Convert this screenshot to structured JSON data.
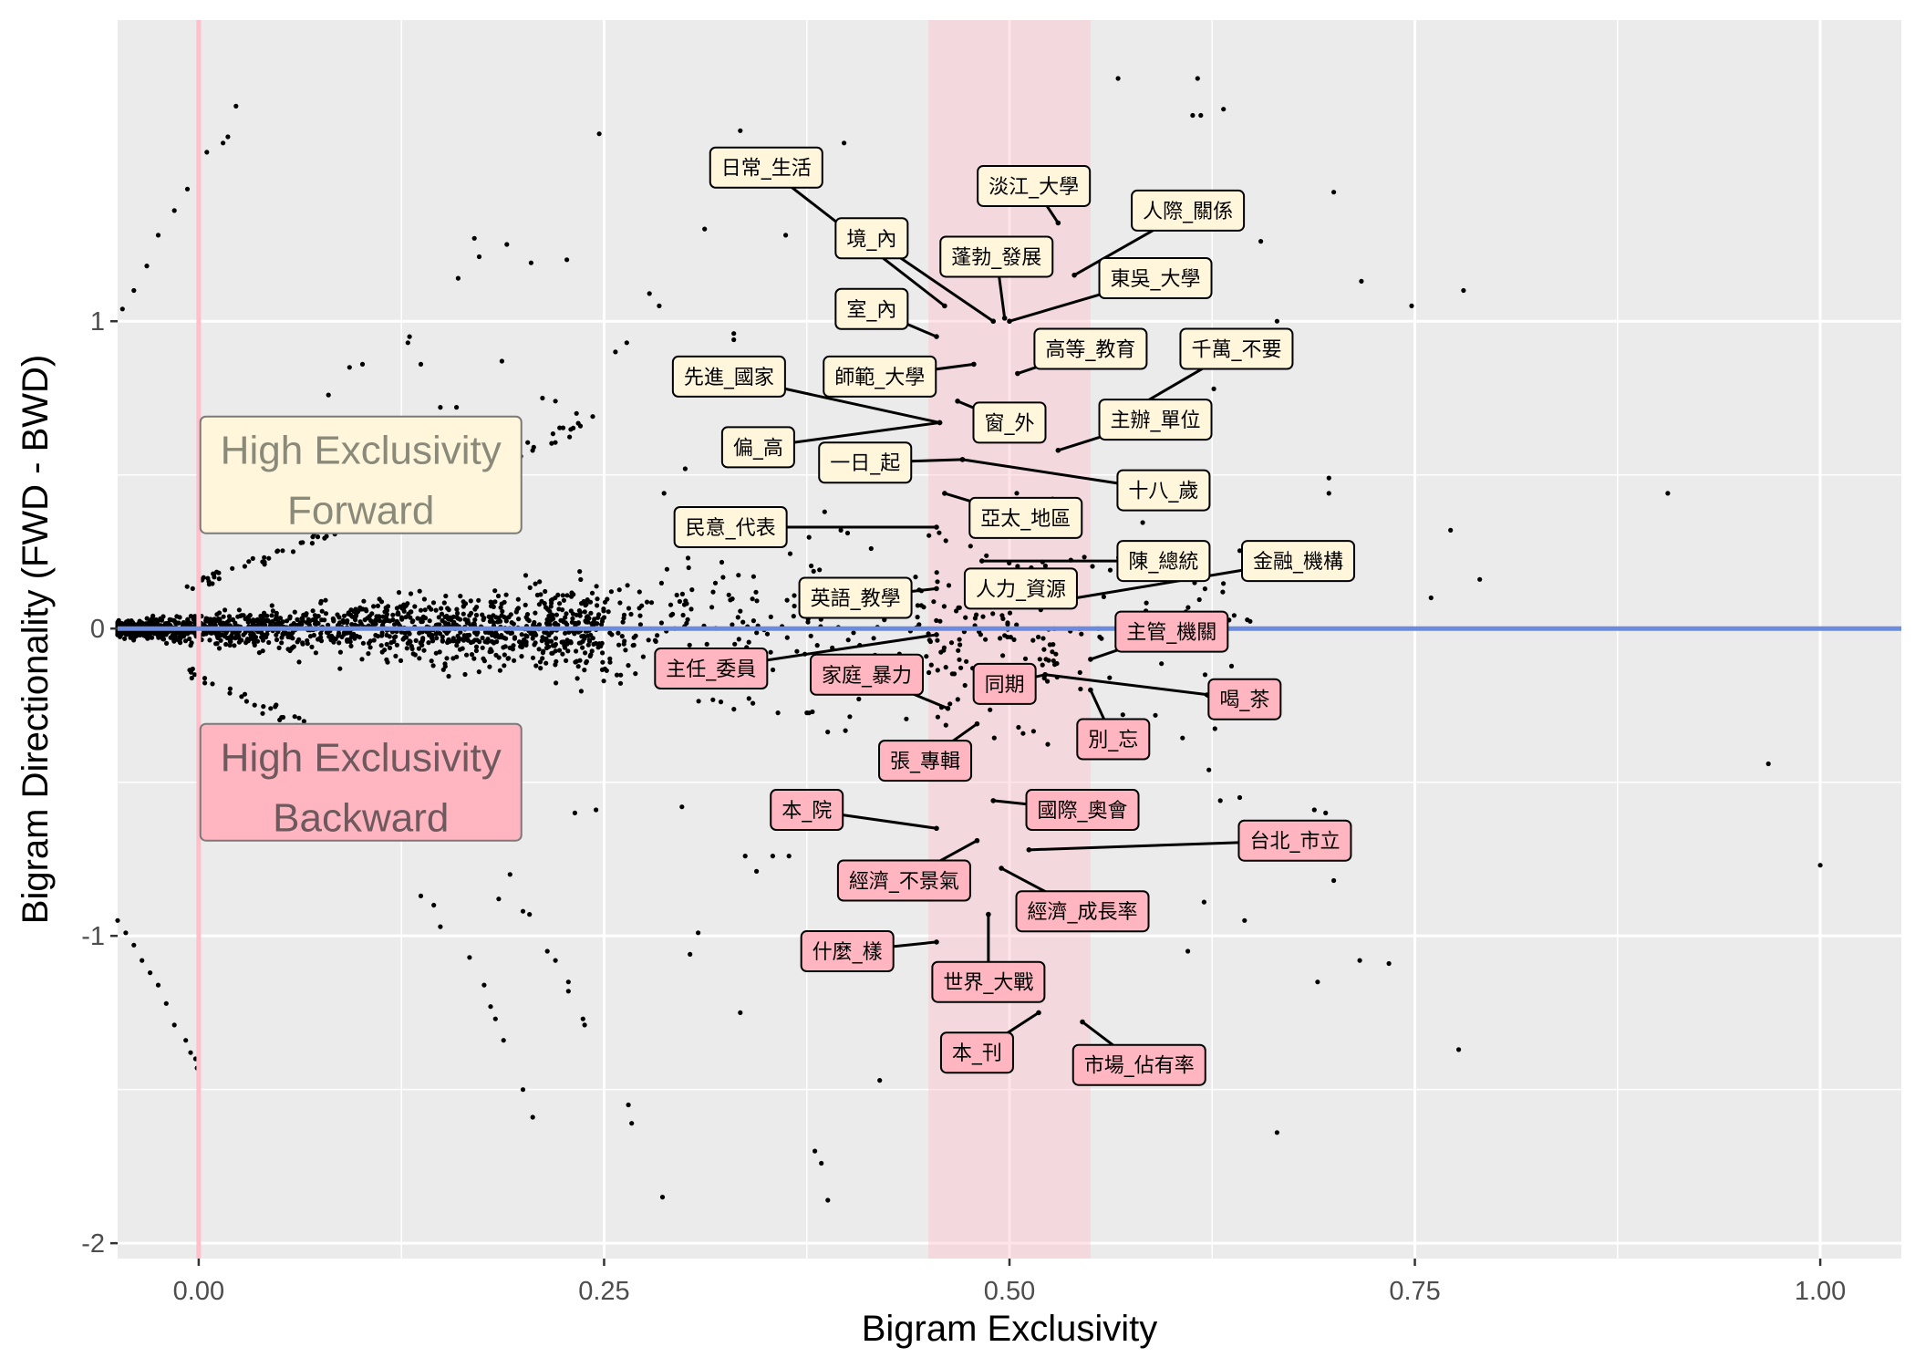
{
  "chart_data": {
    "type": "scatter",
    "xlabel": "Bigram Exclusivity",
    "ylabel": "Bigram Directionality (FWD - BWD)",
    "xlim": [
      -0.05,
      1.05
    ],
    "ylim": [
      -2.05,
      1.98
    ],
    "x_ticks": [
      0,
      0.25,
      0.5,
      0.75,
      1
    ],
    "x_tick_labels": [
      "0.00",
      "0.25",
      "0.50",
      "0.75",
      "1.00"
    ],
    "y_ticks": [
      -2,
      -1,
      0,
      1
    ],
    "y_tick_labels": [
      "-2",
      "-1",
      "0",
      "1"
    ],
    "grid": true,
    "colors": {
      "panel": "#ebebeb",
      "grid": "#ffffff",
      "points": "#000000",
      "hline": "#6b8be0",
      "vline": "#ffc0cb",
      "band": "#ffc0cb",
      "forward_fill": "#fff6dc",
      "backward_fill": "#ffb6c1"
    },
    "reference_lines": {
      "horizontal_y": 0,
      "vertical_x": 0
    },
    "highlight_band": {
      "xmin": 0.45,
      "xmax": 0.55
    },
    "region_labels": [
      {
        "line1": "High Exclusivity",
        "line2": "Forward",
        "type": "forward",
        "x": 0.1,
        "y": 0.5
      },
      {
        "line1": "High Exclusivity",
        "line2": "Backward",
        "type": "backward",
        "x": 0.1,
        "y": -0.5
      }
    ],
    "labeled_points": [
      {
        "text": "日常_生活",
        "type": "forward",
        "px": 0.46,
        "py": 1.05,
        "lx": 0.35,
        "ly": 1.5
      },
      {
        "text": "淡江_大學",
        "type": "forward",
        "px": 0.53,
        "py": 1.32,
        "lx": 0.515,
        "ly": 1.44
      },
      {
        "text": "人際_關係",
        "type": "forward",
        "px": 0.54,
        "py": 1.15,
        "lx": 0.61,
        "ly": 1.36
      },
      {
        "text": "境_內",
        "type": "forward",
        "px": 0.49,
        "py": 1.0,
        "lx": 0.415,
        "ly": 1.27
      },
      {
        "text": "蓬勃_發展",
        "type": "forward",
        "px": 0.497,
        "py": 1.01,
        "lx": 0.492,
        "ly": 1.21
      },
      {
        "text": "東吳_大學",
        "type": "forward",
        "px": 0.5,
        "py": 1.0,
        "lx": 0.59,
        "ly": 1.14
      },
      {
        "text": "室_內",
        "type": "forward",
        "px": 0.455,
        "py": 0.95,
        "lx": 0.415,
        "ly": 1.04
      },
      {
        "text": "高等_教育",
        "type": "forward",
        "px": 0.505,
        "py": 0.83,
        "lx": 0.55,
        "ly": 0.91
      },
      {
        "text": "千萬_不要",
        "type": "forward",
        "px": 0.565,
        "py": 0.68,
        "lx": 0.64,
        "ly": 0.91
      },
      {
        "text": "先進_國家",
        "type": "forward",
        "px": 0.457,
        "py": 0.67,
        "lx": 0.327,
        "ly": 0.82
      },
      {
        "text": "師範_大學",
        "type": "forward",
        "px": 0.478,
        "py": 0.86,
        "lx": 0.42,
        "ly": 0.82
      },
      {
        "text": "窗_外",
        "type": "forward",
        "px": 0.468,
        "py": 0.74,
        "lx": 0.5,
        "ly": 0.67
      },
      {
        "text": "主辦_單位",
        "type": "forward",
        "px": 0.53,
        "py": 0.58,
        "lx": 0.59,
        "ly": 0.68
      },
      {
        "text": "偏_高",
        "type": "forward",
        "px": 0.457,
        "py": 0.67,
        "lx": 0.345,
        "ly": 0.59
      },
      {
        "text": "一日_起",
        "type": "forward",
        "px": 0.471,
        "py": 0.55,
        "lx": 0.411,
        "ly": 0.54
      },
      {
        "text": "十八_歲",
        "type": "forward",
        "px": 0.471,
        "py": 0.55,
        "lx": 0.595,
        "ly": 0.45
      },
      {
        "text": "亞太_地區",
        "type": "forward",
        "px": 0.46,
        "py": 0.44,
        "lx": 0.51,
        "ly": 0.36
      },
      {
        "text": "民意_代表",
        "type": "forward",
        "px": 0.455,
        "py": 0.33,
        "lx": 0.328,
        "ly": 0.33
      },
      {
        "text": "陳_總統",
        "type": "forward",
        "px": 0.483,
        "py": 0.22,
        "lx": 0.595,
        "ly": 0.22
      },
      {
        "text": "金融_機構",
        "type": "forward",
        "px": 0.53,
        "py": 0.09,
        "lx": 0.678,
        "ly": 0.22
      },
      {
        "text": "人力_資源",
        "type": "forward",
        "px": 0.49,
        "py": 0.12,
        "lx": 0.507,
        "ly": 0.13
      },
      {
        "text": "英語_教學",
        "type": "forward",
        "px": 0.455,
        "py": 0.13,
        "lx": 0.405,
        "ly": 0.1
      },
      {
        "text": "主管_機關",
        "type": "backward",
        "px": 0.55,
        "py": -0.1,
        "lx": 0.6,
        "ly": -0.01
      },
      {
        "text": "主任_委員",
        "type": "backward",
        "px": 0.455,
        "py": -0.02,
        "lx": 0.316,
        "ly": -0.13
      },
      {
        "text": "家庭_暴力",
        "type": "backward",
        "px": 0.462,
        "py": -0.26,
        "lx": 0.412,
        "ly": -0.15
      },
      {
        "text": "同期",
        "type": "backward",
        "px": 0.522,
        "py": -0.15,
        "lx": 0.497,
        "ly": -0.18
      },
      {
        "text": "喝_茶",
        "type": "backward",
        "px": 0.522,
        "py": -0.15,
        "lx": 0.645,
        "ly": -0.23
      },
      {
        "text": "別_忘",
        "type": "backward",
        "px": 0.55,
        "py": -0.2,
        "lx": 0.564,
        "ly": -0.36
      },
      {
        "text": "張_專輯",
        "type": "backward",
        "px": 0.48,
        "py": -0.31,
        "lx": 0.448,
        "ly": -0.43
      },
      {
        "text": "本_院",
        "type": "backward",
        "px": 0.455,
        "py": -0.65,
        "lx": 0.375,
        "ly": -0.59
      },
      {
        "text": "國際_奧會",
        "type": "backward",
        "px": 0.49,
        "py": -0.56,
        "lx": 0.545,
        "ly": -0.59
      },
      {
        "text": "台北_市立",
        "type": "backward",
        "px": 0.512,
        "py": -0.72,
        "lx": 0.676,
        "ly": -0.69
      },
      {
        "text": "經濟_不景氣",
        "type": "backward",
        "px": 0.48,
        "py": -0.69,
        "lx": 0.435,
        "ly": -0.82
      },
      {
        "text": "經濟_成長率",
        "type": "backward",
        "px": 0.495,
        "py": -0.78,
        "lx": 0.545,
        "ly": -0.92
      },
      {
        "text": "什麼_樣",
        "type": "backward",
        "px": 0.455,
        "py": -1.02,
        "lx": 0.4,
        "ly": -1.05
      },
      {
        "text": "世界_大戰",
        "type": "backward",
        "px": 0.487,
        "py": -0.93,
        "lx": 0.487,
        "ly": -1.15
      },
      {
        "text": "本_刊",
        "type": "backward",
        "px": 0.518,
        "py": -1.25,
        "lx": 0.48,
        "ly": -1.38
      },
      {
        "text": "市場_佔有率",
        "type": "backward",
        "px": 0.545,
        "py": -1.28,
        "lx": 0.58,
        "ly": -1.42
      }
    ],
    "scattered_points": [
      [
        0.015,
        1.58
      ],
      [
        0.018,
        1.6
      ],
      [
        0.005,
        1.55
      ],
      [
        0.023,
        1.7
      ],
      [
        -0.007,
        1.43
      ],
      [
        -0.015,
        1.36
      ],
      [
        -0.025,
        1.28
      ],
      [
        -0.032,
        1.18
      ],
      [
        -0.04,
        1.1
      ],
      [
        -0.047,
        1.04
      ],
      [
        0.247,
        1.61
      ],
      [
        0.334,
        1.62
      ],
      [
        0.398,
        1.58
      ],
      [
        0.567,
        1.79
      ],
      [
        0.616,
        1.79
      ],
      [
        0.613,
        1.67
      ],
      [
        0.618,
        1.67
      ],
      [
        0.632,
        1.69
      ],
      [
        0.7,
        1.42
      ],
      [
        0.717,
        1.13
      ],
      [
        0.748,
        1.05
      ],
      [
        0.78,
        1.1
      ],
      [
        0.655,
        1.26
      ],
      [
        0.665,
        1.0
      ],
      [
        0.626,
        0.78
      ],
      [
        0.312,
        1.3
      ],
      [
        0.362,
        1.28
      ],
      [
        0.19,
        1.25
      ],
      [
        0.227,
        1.2
      ],
      [
        0.173,
        1.21
      ],
      [
        0.16,
        1.14
      ],
      [
        0.17,
        1.27
      ],
      [
        0.205,
        1.19
      ],
      [
        0.278,
        1.09
      ],
      [
        0.284,
        1.05
      ],
      [
        0.33,
        0.96
      ],
      [
        0.33,
        0.94
      ],
      [
        0.264,
        0.93
      ],
      [
        0.257,
        0.9
      ],
      [
        0.129,
        0.93
      ],
      [
        0.13,
        0.95
      ],
      [
        0.093,
        0.85
      ],
      [
        0.101,
        0.86
      ],
      [
        0.137,
        0.86
      ],
      [
        0.187,
        0.87
      ],
      [
        0.149,
        0.72
      ],
      [
        0.159,
        0.72
      ],
      [
        0.08,
        0.76
      ],
      [
        0.212,
        0.75
      ],
      [
        0.22,
        0.74
      ],
      [
        0.233,
        0.7
      ],
      [
        0.243,
        0.69
      ],
      [
        0.3,
        0.52
      ],
      [
        0.287,
        0.44
      ],
      [
        0.386,
        0.38
      ],
      [
        0.396,
        0.32
      ],
      [
        0.415,
        0.58
      ],
      [
        0.697,
        0.49
      ],
      [
        0.697,
        0.44
      ],
      [
        0.772,
        0.32
      ],
      [
        0.76,
        0.1
      ],
      [
        0.79,
        0.16
      ],
      [
        0.906,
        0.44
      ],
      [
        0.968,
        -0.44
      ],
      [
        1.0,
        -0.77
      ],
      [
        0.777,
        -1.37
      ],
      [
        0.734,
        -1.09
      ],
      [
        0.716,
        -1.08
      ],
      [
        0.69,
        -1.15
      ],
      [
        0.7,
        -0.82
      ],
      [
        0.695,
        -0.6
      ],
      [
        0.688,
        -0.59
      ],
      [
        0.645,
        -0.95
      ],
      [
        0.62,
        -0.89
      ],
      [
        0.61,
        -1.05
      ],
      [
        0.623,
        -0.46
      ],
      [
        0.63,
        -0.56
      ],
      [
        0.642,
        -0.55
      ],
      [
        0.665,
        -1.64
      ],
      [
        0.42,
        -1.47
      ],
      [
        0.38,
        -1.7
      ],
      [
        0.384,
        -1.74
      ],
      [
        0.388,
        -1.86
      ],
      [
        0.286,
        -1.85
      ],
      [
        0.265,
        -1.55
      ],
      [
        0.267,
        -1.61
      ],
      [
        0.2,
        -1.5
      ],
      [
        0.206,
        -1.59
      ],
      [
        0.334,
        -1.25
      ],
      [
        0.303,
        -1.06
      ],
      [
        0.308,
        -0.99
      ],
      [
        0.337,
        -0.74
      ],
      [
        0.344,
        -0.79
      ],
      [
        0.354,
        -0.74
      ],
      [
        0.215,
        -1.05
      ],
      [
        0.22,
        -1.08
      ],
      [
        0.228,
        -1.15
      ],
      [
        0.228,
        -1.18
      ],
      [
        0.237,
        -1.27
      ],
      [
        0.238,
        -1.29
      ],
      [
        0.204,
        -0.93
      ],
      [
        0.185,
        -0.88
      ],
      [
        0.2,
        -0.92
      ],
      [
        0.18,
        -1.23
      ],
      [
        0.183,
        -1.27
      ],
      [
        0.188,
        -1.34
      ],
      [
        0.137,
        -0.87
      ],
      [
        0.145,
        -0.9
      ],
      [
        0.149,
        -0.97
      ],
      [
        0.167,
        -1.07
      ],
      [
        0.176,
        -1.16
      ],
      [
        0.192,
        -0.8
      ],
      [
        0.232,
        -0.6
      ],
      [
        0.245,
        -0.59
      ],
      [
        0.298,
        -0.58
      ],
      [
        0.364,
        -0.74
      ],
      [
        0.41,
        -1.06
      ],
      [
        -0.05,
        -0.95
      ],
      [
        -0.045,
        -0.99
      ],
      [
        -0.04,
        -1.03
      ],
      [
        -0.035,
        -1.08
      ],
      [
        -0.03,
        -1.12
      ],
      [
        -0.025,
        -1.16
      ],
      [
        -0.02,
        -1.22
      ],
      [
        -0.015,
        -1.29
      ],
      [
        -0.008,
        -1.34
      ],
      [
        -0.005,
        -1.38
      ],
      [
        -0.002,
        -1.4
      ],
      [
        -0.001,
        -1.43
      ]
    ]
  }
}
